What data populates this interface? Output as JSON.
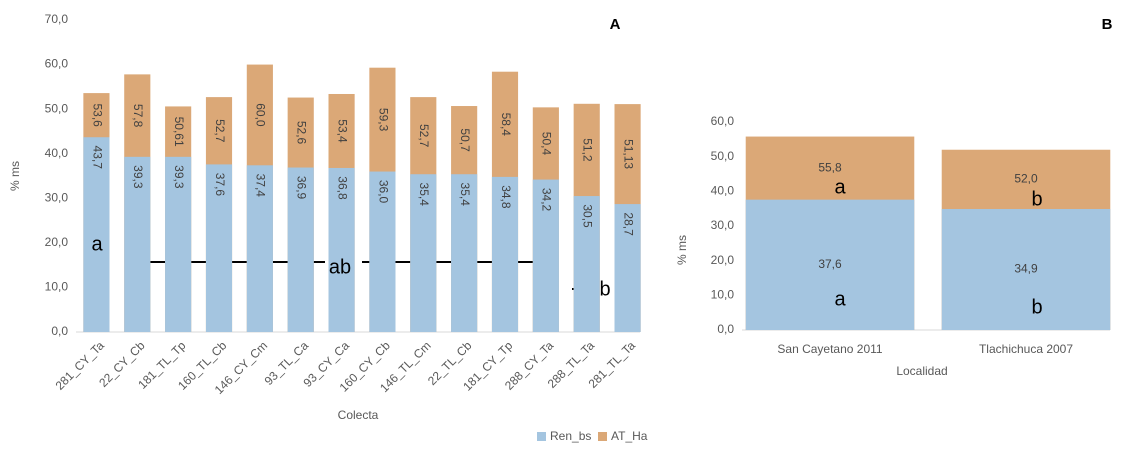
{
  "chart_data": [
    {
      "type": "bar",
      "label": "A",
      "xlabel": "Colecta",
      "ylabel": "% ms",
      "categories": [
        "281_CY_Ta",
        "22_CY_Cb",
        "181_TL_Tp",
        "160_TL_Cb",
        "146_CY_Cm",
        "93_TL_Ca",
        "93_CY_Ca",
        "160_CY_Cb",
        "146_TL_Cm",
        "22_TL_Cb",
        "181_CY_Tp",
        "288_CY_Ta",
        "288_TL_Ta",
        "281_TL_Ta"
      ],
      "series": [
        {
          "name": "Ren_bs",
          "color": "#a4c5e0",
          "values": [
            43.7,
            39.3,
            39.3,
            37.6,
            37.4,
            36.9,
            36.8,
            36.0,
            35.4,
            35.4,
            34.8,
            34.2,
            30.5,
            28.7
          ],
          "value_labels": [
            "43,7",
            "39,3",
            "39,3",
            "37,6",
            "37,4",
            "36,9",
            "36,8",
            "36,0",
            "35,4",
            "35,4",
            "34,8",
            "34,2",
            "30,5",
            "28,7"
          ]
        },
        {
          "name": "AT_Ha",
          "color": "#dba877",
          "values": [
            53.6,
            57.8,
            50.61,
            52.7,
            60.0,
            52.6,
            53.4,
            59.3,
            52.7,
            50.7,
            58.4,
            50.4,
            51.2,
            51.13
          ],
          "value_labels": [
            "53,6",
            "57,8",
            "50,61",
            "52,7",
            "60,0",
            "52,6",
            "53,4",
            "59,3",
            "52,7",
            "50,7",
            "58,4",
            "50,4",
            "51,2",
            "51,13"
          ]
        }
      ],
      "ylim": [
        0,
        70
      ],
      "yticks": [
        {
          "value": 0,
          "label": "0,0"
        },
        {
          "value": 10,
          "label": "10,0"
        },
        {
          "value": 20,
          "label": "20,0"
        },
        {
          "value": 30,
          "label": "30,0"
        },
        {
          "value": 40,
          "label": "40,0"
        },
        {
          "value": 50,
          "label": "50,0"
        },
        {
          "value": 60,
          "label": "60,0"
        },
        {
          "value": 70,
          "label": "70,0"
        }
      ],
      "annotations": [
        "a",
        "ab",
        "b"
      ]
    },
    {
      "type": "bar",
      "label": "B",
      "xlabel": "Localidad",
      "ylabel": "% ms",
      "categories": [
        "San Cayetano 2011",
        "Tlachichuca 2007"
      ],
      "series": [
        {
          "color": "#a4c5e0",
          "values": [
            37.6,
            34.9
          ],
          "value_labels": [
            "37,6",
            "34,9"
          ]
        },
        {
          "color": "#dba877",
          "values": [
            55.8,
            52.0
          ],
          "value_labels": [
            "55,8",
            "52,0"
          ]
        }
      ],
      "ylim": [
        0,
        60
      ],
      "yticks": [
        {
          "value": 0,
          "label": "0,0"
        },
        {
          "value": 10,
          "label": "10,0"
        },
        {
          "value": 20,
          "label": "20,0"
        },
        {
          "value": 30,
          "label": "30,0"
        },
        {
          "value": 40,
          "label": "40,0"
        },
        {
          "value": 50,
          "label": "50,0"
        },
        {
          "value": 60,
          "label": "60,0"
        }
      ],
      "annotations": [
        "a",
        "a",
        "b",
        "b"
      ]
    }
  ]
}
